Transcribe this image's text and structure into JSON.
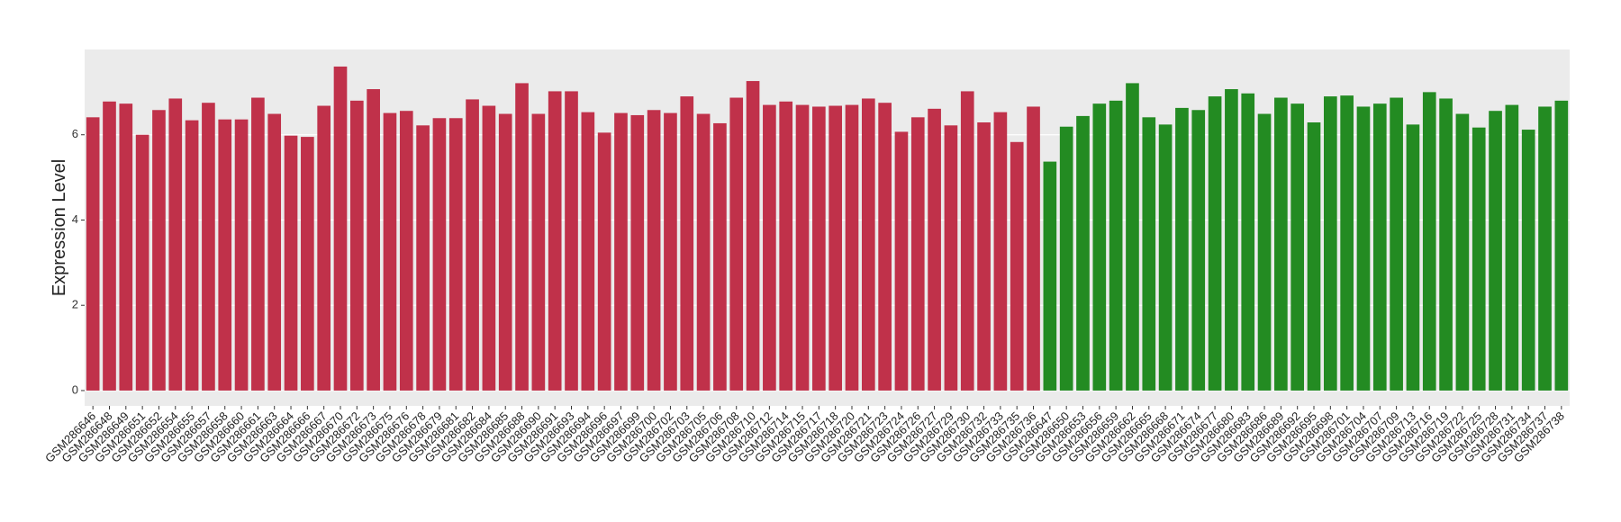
{
  "chart_data": {
    "type": "bar",
    "ylabel": "Expression Level",
    "categories": [
      "GSM286646",
      "GSM286648",
      "GSM286649",
      "GSM286651",
      "GSM286652",
      "GSM286654",
      "GSM286655",
      "GSM286657",
      "GSM286658",
      "GSM286660",
      "GSM286661",
      "GSM286663",
      "GSM286664",
      "GSM286666",
      "GSM286667",
      "GSM286670",
      "GSM286672",
      "GSM286673",
      "GSM286675",
      "GSM286676",
      "GSM286678",
      "GSM286679",
      "GSM286681",
      "GSM286682",
      "GSM286684",
      "GSM286685",
      "GSM286688",
      "GSM286690",
      "GSM286691",
      "GSM286693",
      "GSM286694",
      "GSM286696",
      "GSM286697",
      "GSM286699",
      "GSM286700",
      "GSM286702",
      "GSM286703",
      "GSM286705",
      "GSM286706",
      "GSM286708",
      "GSM286710",
      "GSM286712",
      "GSM286714",
      "GSM286715",
      "GSM286717",
      "GSM286718",
      "GSM286720",
      "GSM286721",
      "GSM286723",
      "GSM286724",
      "GSM286726",
      "GSM286727",
      "GSM286729",
      "GSM286730",
      "GSM286732",
      "GSM286733",
      "GSM286735",
      "GSM286736",
      "GSM286647",
      "GSM286650",
      "GSM286653",
      "GSM286656",
      "GSM286659",
      "GSM286662",
      "GSM286665",
      "GSM286668",
      "GSM286671",
      "GSM286674",
      "GSM286677",
      "GSM286680",
      "GSM286683",
      "GSM286686",
      "GSM286689",
      "GSM286692",
      "GSM286695",
      "GSM286698",
      "GSM286701",
      "GSM286704",
      "GSM286707",
      "GSM286709",
      "GSM286713",
      "GSM286716",
      "GSM286719",
      "GSM286722",
      "GSM286725",
      "GSM286728",
      "GSM286731",
      "GSM286734",
      "GSM286737",
      "GSM286738"
    ],
    "values": [
      6.41,
      6.78,
      6.73,
      6.0,
      6.58,
      6.85,
      6.34,
      6.75,
      6.36,
      6.36,
      6.87,
      6.49,
      5.98,
      5.95,
      6.68,
      7.6,
      6.8,
      7.07,
      6.51,
      6.56,
      6.22,
      6.39,
      6.39,
      6.83,
      6.68,
      6.49,
      7.21,
      6.49,
      7.02,
      7.02,
      6.53,
      6.05,
      6.51,
      6.46,
      6.58,
      6.51,
      6.9,
      6.49,
      6.27,
      6.87,
      7.26,
      6.7,
      6.78,
      6.7,
      6.66,
      6.68,
      6.7,
      6.85,
      6.75,
      6.07,
      6.41,
      6.61,
      6.22,
      7.02,
      6.29,
      6.53,
      5.83,
      6.66,
      5.37,
      6.19,
      6.44,
      6.73,
      6.8,
      7.21,
      6.41,
      6.24,
      6.63,
      6.58,
      6.9,
      7.07,
      6.97,
      6.49,
      6.87,
      6.73,
      6.29,
      6.9,
      6.92,
      6.66,
      6.73,
      6.87,
      6.24,
      7.0,
      6.85,
      6.49,
      6.17,
      6.56,
      6.7,
      6.12,
      6.66,
      6.8
    ],
    "colors": [
      "#c0314a",
      "#c0314a",
      "#c0314a",
      "#c0314a",
      "#c0314a",
      "#c0314a",
      "#c0314a",
      "#c0314a",
      "#c0314a",
      "#c0314a",
      "#c0314a",
      "#c0314a",
      "#c0314a",
      "#c0314a",
      "#c0314a",
      "#c0314a",
      "#c0314a",
      "#c0314a",
      "#c0314a",
      "#c0314a",
      "#c0314a",
      "#c0314a",
      "#c0314a",
      "#c0314a",
      "#c0314a",
      "#c0314a",
      "#c0314a",
      "#c0314a",
      "#c0314a",
      "#c0314a",
      "#c0314a",
      "#c0314a",
      "#c0314a",
      "#c0314a",
      "#c0314a",
      "#c0314a",
      "#c0314a",
      "#c0314a",
      "#c0314a",
      "#c0314a",
      "#c0314a",
      "#c0314a",
      "#c0314a",
      "#c0314a",
      "#c0314a",
      "#c0314a",
      "#c0314a",
      "#c0314a",
      "#c0314a",
      "#c0314a",
      "#c0314a",
      "#c0314a",
      "#c0314a",
      "#c0314a",
      "#c0314a",
      "#c0314a",
      "#c0314a",
      "#c0314a",
      "#238b22",
      "#238b22",
      "#238b22",
      "#238b22",
      "#238b22",
      "#238b22",
      "#238b22",
      "#238b22",
      "#238b22",
      "#238b22",
      "#238b22",
      "#238b22",
      "#238b22",
      "#238b22",
      "#238b22",
      "#238b22",
      "#238b22",
      "#238b22",
      "#238b22",
      "#238b22",
      "#238b22",
      "#238b22",
      "#238b22",
      "#238b22",
      "#238b22",
      "#238b22",
      "#238b22",
      "#238b22",
      "#238b22",
      "#238b22",
      "#238b22",
      "#238b22"
    ],
    "ylim": [
      -0.36,
      8.0
    ],
    "yticks": [
      0,
      2,
      4,
      6
    ],
    "grid": true
  }
}
